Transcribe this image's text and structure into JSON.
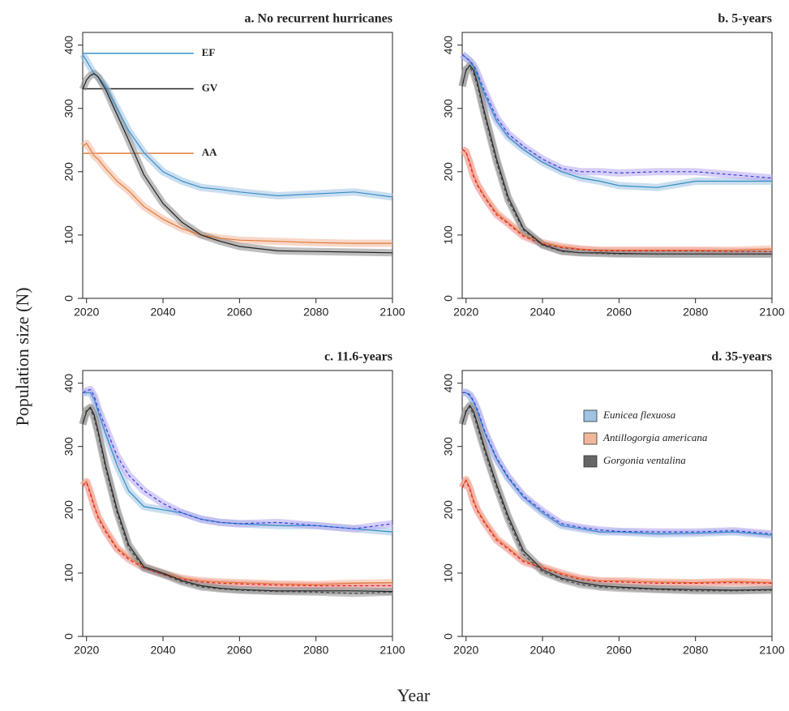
{
  "figure": {
    "y_label": "Population size (N)",
    "x_label": "Year"
  },
  "chart_data": [
    {
      "type": "line",
      "title": "a. No recurrent hurricanes",
      "x": [
        2019,
        2020,
        2021,
        2022,
        2023,
        2025,
        2028,
        2031,
        2035,
        2040,
        2045,
        2050,
        2055,
        2060,
        2070,
        2080,
        2090,
        2100
      ],
      "series": [
        {
          "color": "#3b8fc9",
          "band": "#9ec3e3",
          "dashed": false,
          "values": [
            385,
            375,
            365,
            355,
            350,
            335,
            300,
            265,
            230,
            200,
            185,
            175,
            172,
            168,
            162,
            165,
            168,
            160
          ]
        },
        {
          "color": "#e07b39",
          "band": "#f2b79a",
          "dashed": false,
          "values": [
            240,
            245,
            235,
            225,
            220,
            205,
            185,
            170,
            145,
            125,
            110,
            100,
            95,
            92,
            90,
            88,
            87,
            87
          ]
        },
        {
          "color": "#222222",
          "band": "#888888",
          "dashed": false,
          "values": [
            330,
            345,
            352,
            355,
            350,
            330,
            290,
            250,
            195,
            150,
            120,
            100,
            90,
            82,
            75,
            74,
            73,
            72
          ]
        }
      ],
      "annotations": [
        {
          "text": "EF",
          "y": 387,
          "x": [
            2019,
            2048
          ],
          "color": "#3b8fc9"
        },
        {
          "text": "GV",
          "y": 331,
          "x": [
            2019,
            2048
          ],
          "color": "#222222"
        },
        {
          "text": "AA",
          "y": 229,
          "x": [
            2019,
            2048
          ],
          "color": "#e07b39"
        }
      ],
      "xlim": [
        2019,
        2100
      ],
      "ylim": [
        0,
        420
      ],
      "xticks": [
        2020,
        2040,
        2060,
        2080,
        2100
      ],
      "yticks": [
        0,
        100,
        200,
        300,
        400
      ]
    },
    {
      "type": "line",
      "title": "b. 5-years",
      "x": [
        2019,
        2020,
        2021,
        2022,
        2023,
        2025,
        2028,
        2031,
        2035,
        2040,
        2045,
        2050,
        2055,
        2060,
        2070,
        2080,
        2090,
        2100
      ],
      "series": [
        {
          "color": "#2f8fbf",
          "band": "#9ec3e3",
          "dashed": false,
          "values": [
            385,
            380,
            375,
            365,
            350,
            320,
            280,
            255,
            235,
            215,
            200,
            190,
            185,
            178,
            175,
            185,
            185,
            185
          ]
        },
        {
          "color": "#3344dd",
          "band": "#b8a8f0",
          "dashed": true,
          "values": [
            385,
            380,
            375,
            368,
            355,
            325,
            285,
            260,
            240,
            220,
            205,
            200,
            200,
            198,
            200,
            200,
            195,
            190
          ]
        },
        {
          "color": "#e07b39",
          "band": "#f2b79a",
          "dashed": false,
          "values": [
            235,
            230,
            215,
            195,
            180,
            160,
            135,
            120,
            100,
            88,
            82,
            78,
            76,
            76,
            76,
            76,
            76,
            78
          ]
        },
        {
          "color": "#e02020",
          "band": "#f29a9a",
          "dashed": true,
          "values": [
            235,
            232,
            212,
            192,
            178,
            158,
            132,
            118,
            98,
            86,
            80,
            77,
            75,
            75,
            75,
            75,
            74,
            74
          ]
        },
        {
          "color": "#222222",
          "band": "#888888",
          "dashed": false,
          "values": [
            335,
            360,
            368,
            360,
            340,
            290,
            220,
            160,
            110,
            85,
            75,
            72,
            72,
            71,
            70,
            70,
            70,
            70
          ]
        },
        {
          "color": "#444444",
          "band": "#999999",
          "dashed": true,
          "values": [
            335,
            362,
            365,
            355,
            335,
            285,
            215,
            155,
            108,
            84,
            74,
            72,
            71,
            70,
            70,
            70,
            70,
            70
          ]
        }
      ],
      "xlim": [
        2019,
        2100
      ],
      "ylim": [
        0,
        420
      ],
      "xticks": [
        2020,
        2040,
        2060,
        2080,
        2100
      ],
      "yticks": [
        0,
        100,
        200,
        300,
        400
      ]
    },
    {
      "type": "line",
      "title": "c. 11.6-years",
      "x": [
        2019,
        2020,
        2021,
        2022,
        2023,
        2025,
        2028,
        2031,
        2035,
        2040,
        2045,
        2050,
        2055,
        2060,
        2070,
        2080,
        2090,
        2100
      ],
      "series": [
        {
          "color": "#2f8fbf",
          "band": "#9ec3e3",
          "dashed": false,
          "values": [
            385,
            385,
            385,
            375,
            355,
            320,
            270,
            230,
            205,
            200,
            195,
            185,
            180,
            178,
            175,
            175,
            170,
            165
          ]
        },
        {
          "color": "#3344dd",
          "band": "#b8a8f0",
          "dashed": true,
          "values": [
            385,
            388,
            390,
            380,
            360,
            330,
            285,
            255,
            230,
            210,
            195,
            185,
            180,
            178,
            180,
            175,
            170,
            178
          ]
        },
        {
          "color": "#e07b39",
          "band": "#f2b79a",
          "dashed": false,
          "values": [
            238,
            245,
            228,
            208,
            190,
            168,
            140,
            125,
            110,
            100,
            92,
            88,
            86,
            85,
            83,
            82,
            84,
            85
          ]
        },
        {
          "color": "#e02020",
          "band": "#f29a9a",
          "dashed": true,
          "values": [
            238,
            243,
            225,
            205,
            188,
            165,
            138,
            122,
            108,
            98,
            90,
            86,
            84,
            83,
            81,
            80,
            80,
            80
          ]
        },
        {
          "color": "#222222",
          "band": "#888888",
          "dashed": false,
          "values": [
            335,
            355,
            362,
            350,
            325,
            270,
            200,
            145,
            110,
            100,
            88,
            80,
            76,
            74,
            72,
            72,
            72,
            71
          ]
        },
        {
          "color": "#444444",
          "band": "#999999",
          "dashed": true,
          "values": [
            335,
            358,
            360,
            345,
            320,
            265,
            195,
            140,
            108,
            98,
            86,
            78,
            75,
            73,
            71,
            70,
            68,
            70
          ]
        }
      ],
      "xlim": [
        2019,
        2100
      ],
      "ylim": [
        0,
        420
      ],
      "xticks": [
        2020,
        2040,
        2060,
        2080,
        2100
      ],
      "yticks": [
        0,
        100,
        200,
        300,
        400
      ]
    },
    {
      "type": "line",
      "title": "d. 35-years",
      "x": [
        2019,
        2020,
        2021,
        2022,
        2023,
        2025,
        2028,
        2031,
        2035,
        2040,
        2045,
        2050,
        2055,
        2060,
        2070,
        2080,
        2090,
        2100
      ],
      "series": [
        {
          "color": "#2f8fbf",
          "band": "#9ec3e3",
          "dashed": false,
          "values": [
            385,
            385,
            380,
            370,
            355,
            320,
            280,
            250,
            220,
            195,
            175,
            170,
            165,
            165,
            162,
            163,
            165,
            160
          ]
        },
        {
          "color": "#3344dd",
          "band": "#b8a8f0",
          "dashed": true,
          "values": [
            385,
            385,
            382,
            372,
            358,
            322,
            282,
            252,
            222,
            198,
            178,
            172,
            168,
            166,
            165,
            165,
            167,
            162
          ]
        },
        {
          "color": "#e07b39",
          "band": "#f2b79a",
          "dashed": false,
          "values": [
            235,
            248,
            235,
            215,
            200,
            180,
            155,
            140,
            120,
            110,
            100,
            92,
            88,
            88,
            86,
            85,
            87,
            85
          ]
        },
        {
          "color": "#e02020",
          "band": "#f29a9a",
          "dashed": true,
          "values": [
            235,
            246,
            232,
            212,
            198,
            178,
            152,
            138,
            118,
            108,
            98,
            90,
            87,
            86,
            84,
            84,
            85,
            84
          ]
        },
        {
          "color": "#222222",
          "band": "#888888",
          "dashed": false,
          "values": [
            335,
            355,
            365,
            355,
            335,
            295,
            240,
            190,
            135,
            105,
            92,
            85,
            80,
            78,
            75,
            74,
            73,
            74
          ]
        },
        {
          "color": "#444444",
          "band": "#999999",
          "dashed": true,
          "values": [
            335,
            358,
            362,
            350,
            330,
            290,
            235,
            185,
            130,
            102,
            90,
            82,
            78,
            76,
            74,
            72,
            72,
            73
          ]
        }
      ],
      "legend": [
        {
          "name": "Eunicea flexuosa",
          "color": "#9ec3e3"
        },
        {
          "name": "Antillogorgia americana",
          "color": "#f2b79a"
        },
        {
          "name": "Gorgonia ventalina",
          "color": "#666666"
        }
      ],
      "xlim": [
        2019,
        2100
      ],
      "ylim": [
        0,
        420
      ],
      "xticks": [
        2020,
        2040,
        2060,
        2080,
        2100
      ],
      "yticks": [
        0,
        100,
        200,
        300,
        400
      ]
    }
  ]
}
